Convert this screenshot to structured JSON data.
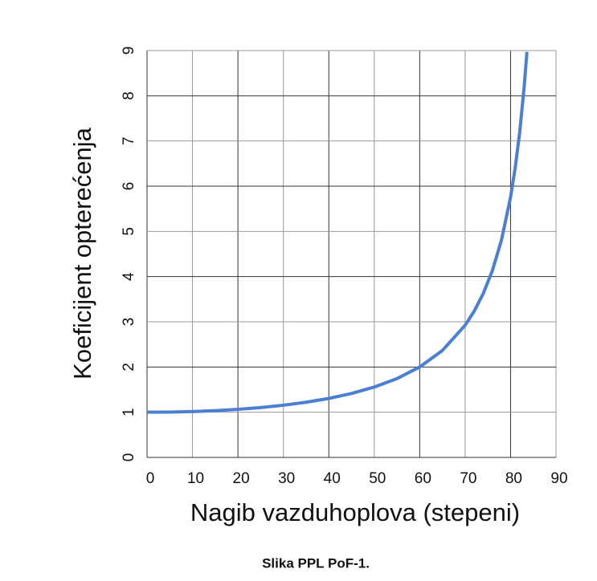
{
  "chart_data": {
    "type": "line",
    "x_label": "Nagib vazduhoplova (stepeni)",
    "y_label": "Koeficijent opterećenja",
    "x": [
      0,
      5,
      10,
      15,
      20,
      25,
      30,
      35,
      40,
      45,
      50,
      55,
      60,
      65,
      70,
      72,
      74,
      76,
      78,
      80,
      81,
      82,
      83,
      83.6
    ],
    "values": [
      1,
      1.004,
      1.015,
      1.035,
      1.064,
      1.103,
      1.155,
      1.221,
      1.305,
      1.414,
      1.556,
      1.743,
      2,
      2.366,
      2.924,
      3.236,
      3.628,
      4.134,
      4.81,
      5.759,
      6.392,
      7.185,
      8.206,
      8.97
    ],
    "color": "#4a7fd4",
    "xlim": [
      0,
      90
    ],
    "xticks": [
      0,
      10,
      20,
      30,
      40,
      50,
      60,
      70,
      80,
      90
    ],
    "ylim": [
      0,
      9
    ],
    "yticks": [
      0,
      1,
      2,
      3,
      4,
      5,
      6,
      7,
      8,
      9
    ],
    "grid": true
  },
  "caption": "Slika PPL PoF-1."
}
